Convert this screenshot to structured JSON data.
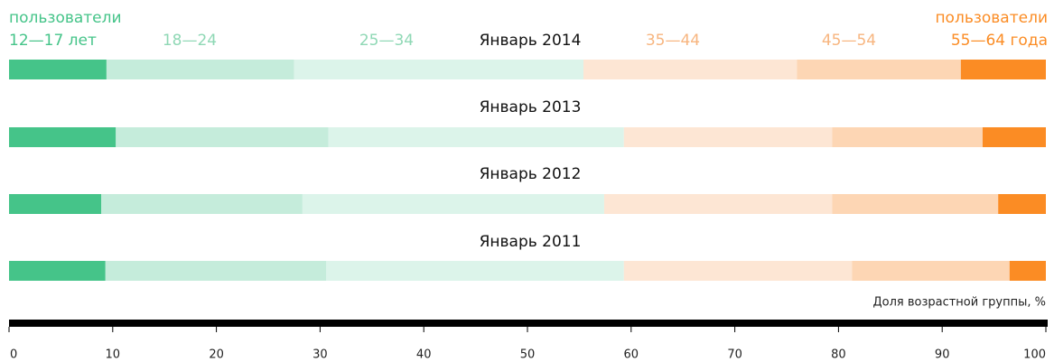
{
  "chart_data": {
    "type": "stacked_barh",
    "categories": [
      "Январь 2014",
      "Январь 2013",
      "Январь 2012",
      "Январь 2011"
    ],
    "series": [
      {
        "name": "12—17 лет",
        "prefix": "пользователи",
        "color": "#45c489",
        "label_color": "#45c489",
        "values": [
          9.4,
          10.3,
          8.9,
          9.3
        ]
      },
      {
        "name": "18—24",
        "color": "#c5ecdb",
        "label_color": "#8fd8b5",
        "values": [
          18.1,
          20.5,
          19.4,
          21.3
        ]
      },
      {
        "name": "25—34",
        "color": "#dcf4ea",
        "label_color": "#8fd8b5",
        "values": [
          27.9,
          28.5,
          29.1,
          28.7
        ]
      },
      {
        "name": "35—44",
        "color": "#fde6d4",
        "label_color": "#f7b57f",
        "values": [
          20.6,
          20.1,
          22.0,
          22.0
        ]
      },
      {
        "name": "45—54",
        "color": "#fdd6b4",
        "label_color": "#f7b57f",
        "values": [
          15.8,
          14.5,
          16.0,
          15.2
        ]
      },
      {
        "name": "55—64 года",
        "prefix": "пользователи",
        "color": "#fb8c24",
        "label_color": "#fb8c24",
        "values": [
          8.2,
          6.1,
          4.6,
          3.5
        ]
      }
    ],
    "xlabel": "Доля возрастной группы, %",
    "xlim": [
      0,
      100
    ],
    "xticks": [
      0,
      10,
      20,
      30,
      40,
      50,
      60,
      70,
      80,
      90,
      100
    ]
  }
}
